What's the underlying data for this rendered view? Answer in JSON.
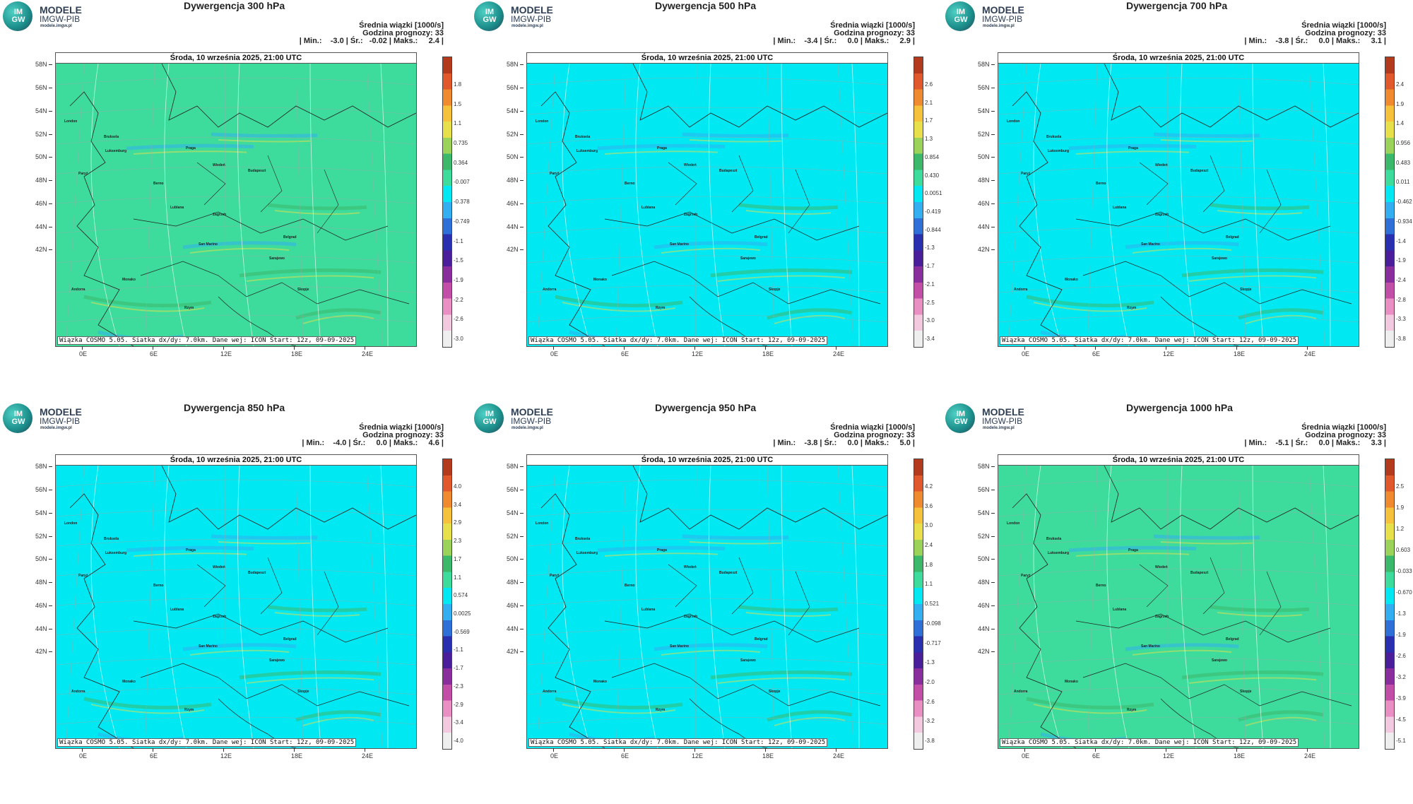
{
  "logo": {
    "mark_top": "IM",
    "mark_bottom": "GW",
    "line1": "MODELE",
    "line2": "IMGW-PIB",
    "line3": "modele.imgw.pl"
  },
  "common": {
    "subtitle": "Średnia wiązki [1000/s]",
    "forecast_hour": "Godzina prognozy: 33",
    "date": "Środa, 10 września 2025, 21:00 UTC",
    "footer": "Wiązka COSMO 5.05. Siatka dx/dy: 7.0km. Dane wej: ICON Start: 12z, 09-09-2025",
    "lat_labels": [
      "58N",
      "56N",
      "54N",
      "52N",
      "50N",
      "48N",
      "46N",
      "44N",
      "42N"
    ],
    "lon_labels": [
      "0E",
      "6E",
      "12E",
      "18E",
      "24E"
    ],
    "cities": [
      "London",
      "Bruksela",
      "Paryż",
      "Luksemburg",
      "Praga",
      "Berno",
      "Wiedeń",
      "Budapeszt",
      "Zagrzeb",
      "Lublana",
      "San Marino",
      "Belgrad",
      "Sarajewo",
      "Skopje",
      "Andorra",
      "Monako",
      "Rzym"
    ]
  },
  "panels": [
    {
      "title": "Dywergencja 300 hPa",
      "stats": "| Min.:    -3.0 | Śr.:   -0.02 | Maks.:     2.4 |",
      "colorbar": [
        "1.8",
        "1.5",
        "1.1",
        "0.735",
        "0.364",
        "-0.007",
        "-0.378",
        "-0.749",
        "-1.1",
        "-1.5",
        "-1.9",
        "-2.2",
        "-2.6",
        "-3.0"
      ],
      "base": "#3ddc9c"
    },
    {
      "title": "Dywergencja 500 hPa",
      "stats": "| Min.:    -3.4 | Śr.:     0.0 | Maks.:     2.9 |",
      "colorbar": [
        "2.6",
        "2.1",
        "1.7",
        "1.3",
        "0.854",
        "0.430",
        "0.0051",
        "-0.419",
        "-0.844",
        "-1.3",
        "-1.7",
        "-2.1",
        "-2.5",
        "-3.0",
        "-3.4"
      ],
      "base": "#00e8f2"
    },
    {
      "title": "Dywergencja 700 hPa",
      "stats": "| Min.:    -3.8 | Śr.:     0.0 | Maks.:     3.1 |",
      "colorbar": [
        "2.4",
        "1.9",
        "1.4",
        "0.956",
        "0.483",
        "0.011",
        "-0.462",
        "-0.934",
        "-1.4",
        "-1.9",
        "-2.4",
        "-2.8",
        "-3.3",
        "-3.8"
      ],
      "base": "#00e8f2"
    },
    {
      "title": "Dywergencja 850 hPa",
      "stats": "| Min.:    -4.0 | Śr.:     0.0 | Maks.:     4.6 |",
      "colorbar": [
        "4.0",
        "3.4",
        "2.9",
        "2.3",
        "1.7",
        "1.1",
        "0.574",
        "0.0025",
        "-0.569",
        "-1.1",
        "-1.7",
        "-2.3",
        "-2.9",
        "-3.4",
        "-4.0"
      ],
      "base": "#00e8f2"
    },
    {
      "title": "Dywergencja 950 hPa",
      "stats": "| Min.:    -3.8 | Śr.:     0.0 | Maks.:     5.0 |",
      "colorbar": [
        "4.2",
        "3.6",
        "3.0",
        "2.4",
        "1.8",
        "1.1",
        "0.521",
        "-0.098",
        "-0.717",
        "-1.3",
        "-2.0",
        "-2.6",
        "-3.2",
        "-3.8"
      ],
      "base": "#00e8f2"
    },
    {
      "title": "Dywergencja 1000 hPa",
      "stats": "| Min.:    -5.1 | Śr.:     0.0 | Maks.:     3.3 |",
      "colorbar": [
        "2.5",
        "1.9",
        "1.2",
        "0.603",
        "-0.033",
        "-0.670",
        "-1.3",
        "-1.9",
        "-2.6",
        "-3.2",
        "-3.9",
        "-4.5",
        "-5.1"
      ],
      "base": "#3ddc9c"
    }
  ],
  "colorbar_colors": [
    "#b33a1c",
    "#e0582b",
    "#f08a2e",
    "#f6c23b",
    "#e8e04a",
    "#9bd35a",
    "#3cb86a",
    "#3ddc9c",
    "#00e8f2",
    "#33aef0",
    "#2f6fd8",
    "#2a2fb0",
    "#4a1e9a",
    "#8a2e9e",
    "#c24ea8",
    "#e98fc4",
    "#f3c9df",
    "#eeeeee"
  ]
}
